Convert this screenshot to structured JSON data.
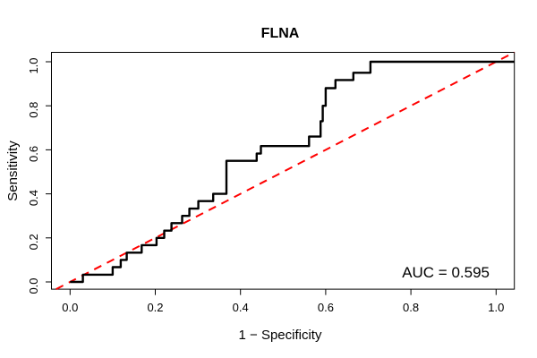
{
  "title": "FLNA",
  "axes": {
    "x_label": "1 − Specificity",
    "y_label": "Sensitivity",
    "x_tick_labels": [
      "0.0",
      "0.2",
      "0.4",
      "0.6",
      "0.8",
      "1.0"
    ],
    "y_tick_labels": [
      "0.0",
      "0.2",
      "0.4",
      "0.6",
      "0.8",
      "1.0"
    ],
    "x_tick_values": [
      0.0,
      0.2,
      0.4,
      0.6,
      0.8,
      1.0
    ],
    "y_tick_values": [
      0.0,
      0.2,
      0.4,
      0.6,
      0.8,
      1.0
    ]
  },
  "annotation": {
    "auc_label": "AUC = 0.595"
  },
  "colors": {
    "roc_curve": "#000000",
    "diagonal": "#ff0000",
    "box": "#000000",
    "text": "#000000"
  },
  "chart_data": {
    "type": "line",
    "title": "FLNA",
    "xlabel": "1 − Specificity",
    "ylabel": "Sensitivity",
    "xlim": [
      0,
      1
    ],
    "ylim": [
      0,
      1
    ],
    "grid": false,
    "legend_position": "none",
    "auc": 0.595,
    "series": [
      {
        "name": "ROC curve (FLNA)",
        "style": "step",
        "line_type": "solid",
        "color": "#000000",
        "points": [
          [
            0.0,
            0.0
          ],
          [
            0.03,
            0.033
          ],
          [
            0.1,
            0.067
          ],
          [
            0.119,
            0.1
          ],
          [
            0.133,
            0.133
          ],
          [
            0.168,
            0.167
          ],
          [
            0.203,
            0.2
          ],
          [
            0.221,
            0.233
          ],
          [
            0.238,
            0.267
          ],
          [
            0.263,
            0.3
          ],
          [
            0.28,
            0.333
          ],
          [
            0.301,
            0.367
          ],
          [
            0.336,
            0.4
          ],
          [
            0.367,
            0.55
          ],
          [
            0.438,
            0.583
          ],
          [
            0.448,
            0.617
          ],
          [
            0.561,
            0.66
          ],
          [
            0.588,
            0.73
          ],
          [
            0.593,
            0.8
          ],
          [
            0.6,
            0.88
          ],
          [
            0.623,
            0.917
          ],
          [
            0.665,
            0.95
          ],
          [
            0.705,
            1.0
          ],
          [
            1.0,
            1.0
          ]
        ]
      },
      {
        "name": "chance diagonal",
        "style": "line",
        "line_type": "dashed",
        "color": "#ff0000",
        "points": [
          [
            0,
            0
          ],
          [
            1,
            1
          ]
        ]
      }
    ]
  }
}
